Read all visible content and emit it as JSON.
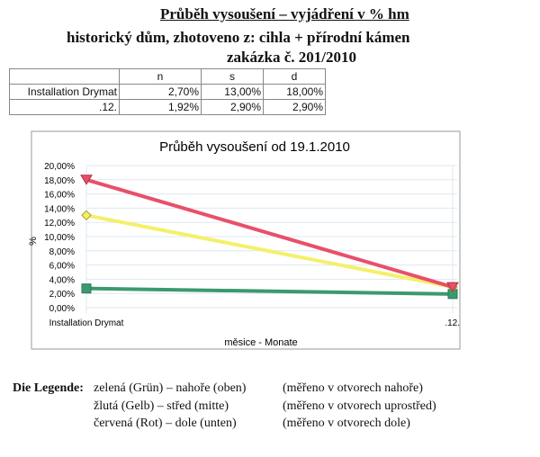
{
  "header": {
    "title": "Průběh vysoušení – vyjádření v % hm",
    "subtitle": "historický dům, zhotoveno z: cihla + přírodní kámen",
    "order": "zakázka č. 201/2010"
  },
  "table": {
    "columns": [
      "",
      "n",
      "s",
      "d"
    ],
    "rows": [
      [
        "Installation Drymat",
        "2,70%",
        "13,00%",
        "18,00%"
      ],
      [
        ".12.",
        "1,92%",
        "2,90%",
        "2,90%"
      ]
    ]
  },
  "chart_data": {
    "type": "line",
    "title": "Průběh vysoušení od 19.1.2010",
    "xlabel": "měsice - Monate",
    "ylabel": "%",
    "categories": [
      "Installation Drymat",
      ".12."
    ],
    "ylim": [
      0,
      20
    ],
    "yticks": [
      "0,00%",
      "2,00%",
      "4,00%",
      "6,00%",
      "8,00%",
      "10,00%",
      "12,00%",
      "14,00%",
      "16,00%",
      "18,00%",
      "20,00%"
    ],
    "grid": true,
    "series": [
      {
        "values": [
          2.7,
          1.92
        ],
        "color": "#3a9a6e",
        "marker": "square"
      },
      {
        "values": [
          13.0,
          2.9
        ],
        "color": "#f4f06a",
        "marker": "diamond"
      },
      {
        "values": [
          18.0,
          2.9
        ],
        "color": "#e8506a",
        "marker": "triangle-down"
      }
    ]
  },
  "legend": {
    "label": "Die Legende:",
    "items": [
      {
        "name": "zelená (Grün) – nahoře (oben)",
        "note": "(měřeno v otvorech nahoře)"
      },
      {
        "name": "žlutá (Gelb) – střed (mitte)",
        "note": "(měřeno v otvorech uprostřed)"
      },
      {
        "name": "červená (Rot) – dole (unten)",
        "note": "(měřeno v otvorech dole)"
      }
    ]
  }
}
